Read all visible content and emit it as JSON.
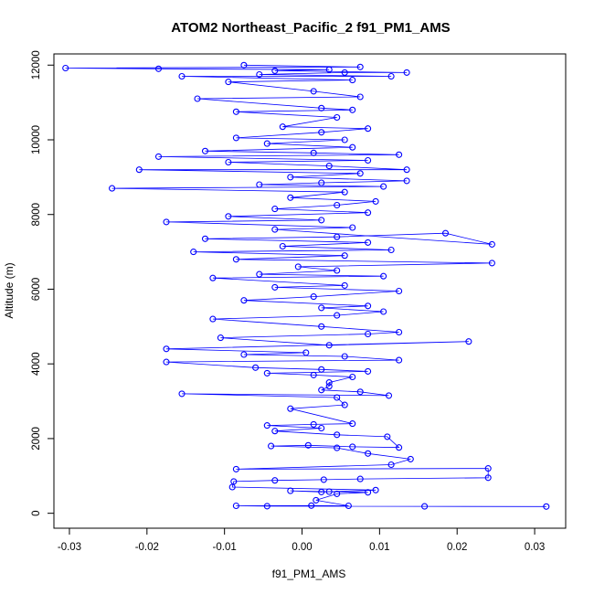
{
  "chart_data": {
    "type": "scatter",
    "title": "ATOM2 Northeast_Pacific_2 f91_PM1_AMS",
    "xlabel": "f91_PM1_AMS",
    "ylabel": "Altitude (m)",
    "xlim": [
      -0.032,
      0.034
    ],
    "ylim": [
      -400,
      12300
    ],
    "x_ticks": [
      {
        "value": -0.03,
        "label": "-0.03"
      },
      {
        "value": -0.02,
        "label": "-0.02"
      },
      {
        "value": -0.01,
        "label": "-0.01"
      },
      {
        "value": 0.0,
        "label": "0.00"
      },
      {
        "value": 0.01,
        "label": "0.01"
      },
      {
        "value": 0.02,
        "label": "0.02"
      },
      {
        "value": 0.03,
        "label": "0.03"
      }
    ],
    "y_ticks": [
      {
        "value": 0,
        "label": "0"
      },
      {
        "value": 2000,
        "label": "2000"
      },
      {
        "value": 4000,
        "label": "4000"
      },
      {
        "value": 6000,
        "label": "6000"
      },
      {
        "value": 8000,
        "label": "8000"
      },
      {
        "value": 10000,
        "label": "10000"
      },
      {
        "value": 12000,
        "label": "12000"
      }
    ],
    "grid": false,
    "marker": "open-circle",
    "connected": true,
    "series_color": "#0000ff",
    "points": [
      [
        0.0315,
        180
      ],
      [
        0.0158,
        185
      ],
      [
        -0.0045,
        190
      ],
      [
        -0.0085,
        200
      ],
      [
        0.0012,
        205
      ],
      [
        0.006,
        200
      ],
      [
        0.0018,
        350
      ],
      [
        0.0045,
        520
      ],
      [
        0.0085,
        560
      ],
      [
        0.0035,
        580
      ],
      [
        -0.0015,
        600
      ],
      [
        0.0025,
        570
      ],
      [
        0.0095,
        620
      ],
      [
        -0.009,
        700
      ],
      [
        -0.0088,
        850
      ],
      [
        -0.0035,
        880
      ],
      [
        0.0028,
        900
      ],
      [
        0.0075,
        920
      ],
      [
        0.024,
        950
      ],
      [
        0.024,
        1200
      ],
      [
        -0.0085,
        1180
      ],
      [
        0.0115,
        1300
      ],
      [
        0.014,
        1450
      ],
      [
        0.0085,
        1600
      ],
      [
        0.0045,
        1750
      ],
      [
        -0.004,
        1800
      ],
      [
        0.0008,
        1820
      ],
      [
        0.0065,
        1780
      ],
      [
        0.0125,
        1760
      ],
      [
        0.011,
        2050
      ],
      [
        0.0045,
        2100
      ],
      [
        -0.0035,
        2200
      ],
      [
        0.0025,
        2280
      ],
      [
        -0.0045,
        2350
      ],
      [
        0.0015,
        2380
      ],
      [
        0.0065,
        2400
      ],
      [
        -0.0015,
        2800
      ],
      [
        0.0055,
        2900
      ],
      [
        0.0045,
        3100
      ],
      [
        -0.0155,
        3200
      ],
      [
        0.0112,
        3150
      ],
      [
        0.0075,
        3250
      ],
      [
        0.0025,
        3300
      ],
      [
        0.0035,
        3400
      ],
      [
        0.0035,
        3500
      ],
      [
        0.0065,
        3650
      ],
      [
        0.0015,
        3700
      ],
      [
        -0.0045,
        3750
      ],
      [
        0.0085,
        3800
      ],
      [
        0.0025,
        3850
      ],
      [
        -0.006,
        3900
      ],
      [
        -0.0175,
        4050
      ],
      [
        0.0125,
        4100
      ],
      [
        0.0055,
        4200
      ],
      [
        -0.0075,
        4250
      ],
      [
        0.0005,
        4300
      ],
      [
        -0.0175,
        4400
      ],
      [
        0.0215,
        4600
      ],
      [
        0.0035,
        4500
      ],
      [
        -0.0105,
        4700
      ],
      [
        0.0085,
        4800
      ],
      [
        0.0125,
        4850
      ],
      [
        0.0025,
        5000
      ],
      [
        -0.0115,
        5200
      ],
      [
        0.0045,
        5300
      ],
      [
        0.0105,
        5400
      ],
      [
        0.0025,
        5500
      ],
      [
        0.0085,
        5550
      ],
      [
        -0.0075,
        5700
      ],
      [
        0.0015,
        5800
      ],
      [
        0.0125,
        5950
      ],
      [
        -0.0035,
        6050
      ],
      [
        0.0055,
        6100
      ],
      [
        -0.0115,
        6300
      ],
      [
        0.0105,
        6350
      ],
      [
        -0.0055,
        6400
      ],
      [
        0.0045,
        6500
      ],
      [
        -0.0005,
        6600
      ],
      [
        0.0245,
        6700
      ],
      [
        -0.0085,
        6800
      ],
      [
        0.0055,
        6900
      ],
      [
        -0.014,
        7000
      ],
      [
        0.0115,
        7050
      ],
      [
        -0.0025,
        7150
      ],
      [
        0.0085,
        7250
      ],
      [
        -0.0125,
        7350
      ],
      [
        0.0045,
        7400
      ],
      [
        0.0185,
        7500
      ],
      [
        0.0245,
        7200
      ],
      [
        -0.0035,
        7600
      ],
      [
        0.0065,
        7650
      ],
      [
        -0.0175,
        7800
      ],
      [
        0.0025,
        7850
      ],
      [
        -0.0095,
        7950
      ],
      [
        0.0085,
        8050
      ],
      [
        -0.0035,
        8150
      ],
      [
        0.0045,
        8250
      ],
      [
        0.0095,
        8350
      ],
      [
        -0.0015,
        8450
      ],
      [
        0.0055,
        8600
      ],
      [
        -0.0245,
        8700
      ],
      [
        0.0105,
        8750
      ],
      [
        -0.0055,
        8800
      ],
      [
        0.0025,
        8850
      ],
      [
        0.0135,
        8900
      ],
      [
        -0.0015,
        9000
      ],
      [
        0.0075,
        9100
      ],
      [
        -0.021,
        9200
      ],
      [
        0.0135,
        9200
      ],
      [
        0.0035,
        9300
      ],
      [
        -0.0095,
        9400
      ],
      [
        0.0085,
        9450
      ],
      [
        -0.0185,
        9550
      ],
      [
        0.0125,
        9600
      ],
      [
        0.0015,
        9650
      ],
      [
        -0.0125,
        9700
      ],
      [
        0.0065,
        9800
      ],
      [
        -0.0045,
        9900
      ],
      [
        0.0055,
        10000
      ],
      [
        -0.0085,
        10050
      ],
      [
        0.0025,
        10200
      ],
      [
        0.0085,
        10300
      ],
      [
        -0.0025,
        10350
      ],
      [
        0.0045,
        10600
      ],
      [
        -0.0085,
        10750
      ],
      [
        0.0065,
        10800
      ],
      [
        0.0025,
        10850
      ],
      [
        -0.0135,
        11100
      ],
      [
        0.0075,
        11150
      ],
      [
        0.0015,
        11300
      ],
      [
        -0.0095,
        11550
      ],
      [
        0.0065,
        11600
      ],
      [
        -0.0155,
        11700
      ],
      [
        0.0115,
        11700
      ],
      [
        -0.0055,
        11750
      ],
      [
        0.0055,
        11800
      ],
      [
        0.0135,
        11800
      ],
      [
        -0.0035,
        11850
      ],
      [
        0.0035,
        11880
      ],
      [
        -0.0185,
        11900
      ],
      [
        -0.0305,
        11920
      ],
      [
        0.0075,
        11950
      ],
      [
        -0.0075,
        12000
      ]
    ]
  }
}
